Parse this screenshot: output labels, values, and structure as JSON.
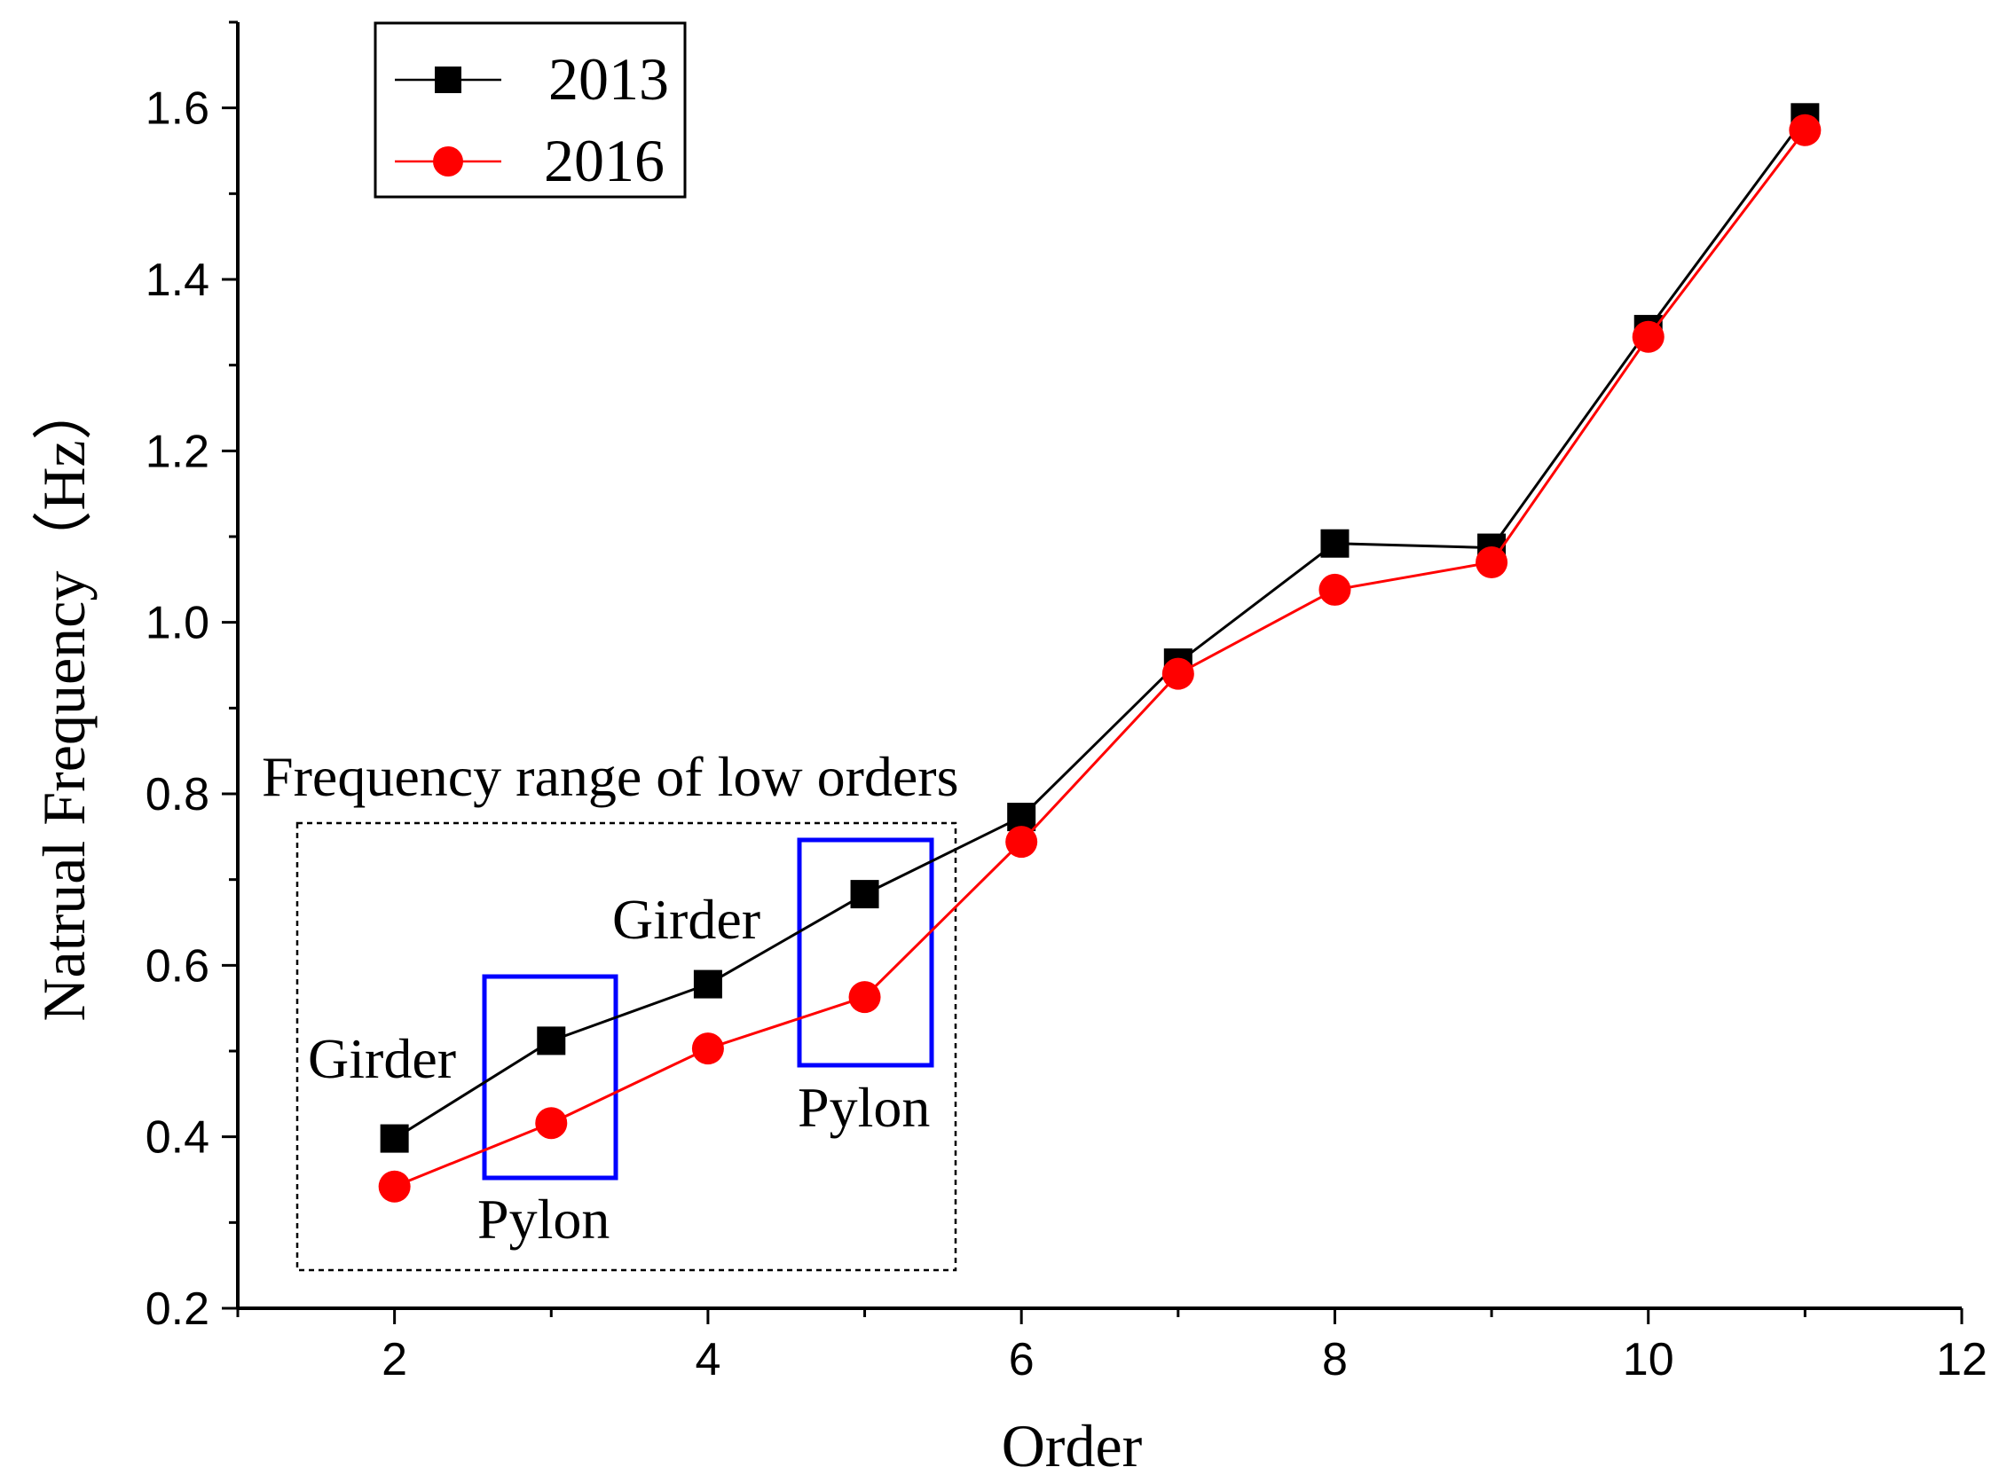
{
  "chart_data": {
    "type": "line",
    "xlabel": "Order",
    "ylabel": "Natrual Frequency（Hz）",
    "xlim": [
      1,
      12
    ],
    "ylim": [
      0.2,
      1.7
    ],
    "xticks": [
      2,
      4,
      6,
      8,
      10,
      12
    ],
    "yticks": [
      0.2,
      0.4,
      0.6,
      0.8,
      1.0,
      1.2,
      1.4,
      1.6
    ],
    "x": [
      2,
      3,
      4,
      5,
      6,
      7,
      8,
      9,
      10,
      11
    ],
    "series": [
      {
        "name": "2013",
        "marker": "square",
        "color": "#000000",
        "values": [
          0.398,
          0.512,
          0.578,
          0.683,
          0.773,
          0.953,
          1.092,
          1.087,
          1.342,
          1.589
        ]
      },
      {
        "name": "2016",
        "marker": "circle",
        "color": "#ff0000",
        "values": [
          0.342,
          0.416,
          0.503,
          0.563,
          0.744,
          0.94,
          1.038,
          1.07,
          1.333,
          1.574
        ]
      }
    ],
    "legend_position": "top-left",
    "annotations": {
      "range_title": "Frequency range of low orders",
      "girder_1": "Girder",
      "girder_2": "Girder",
      "pylon_1": "Pylon",
      "pylon_2": "Pylon"
    },
    "highlight_color": "#0000ff"
  }
}
